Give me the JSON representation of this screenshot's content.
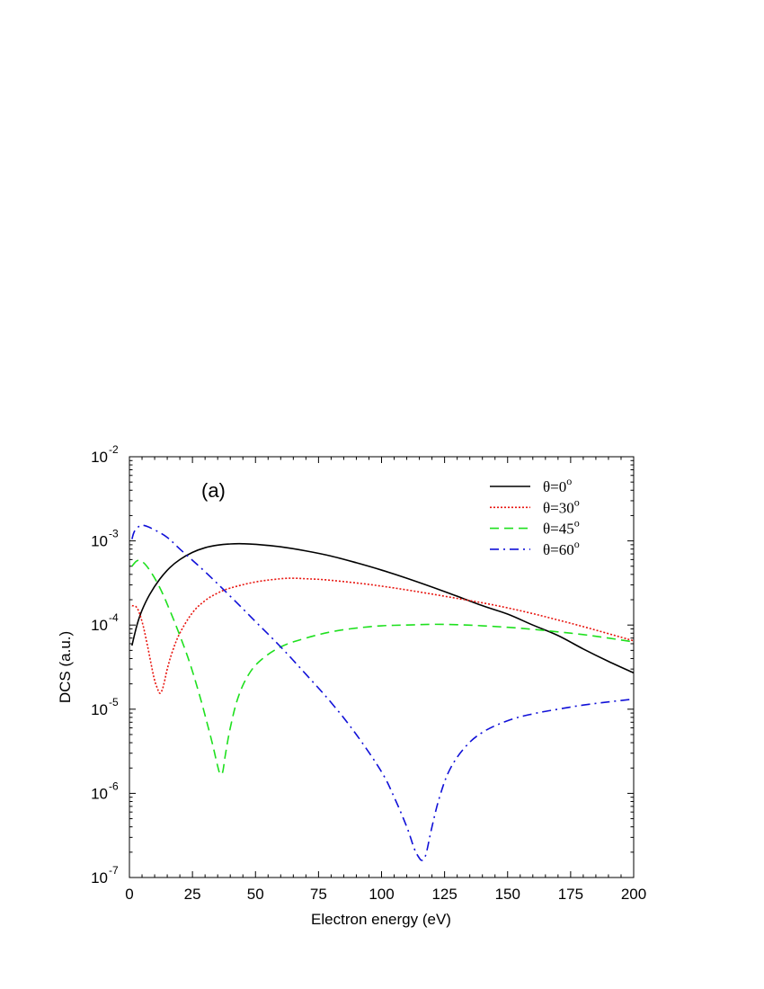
{
  "chart_data": {
    "type": "line",
    "panel_label": "(a)",
    "xlabel": "Electron energy (eV)",
    "ylabel": "DCS (a.u.)",
    "xlim": [
      0,
      200
    ],
    "ylim_log10": [
      -7,
      -2
    ],
    "y_scale": "log",
    "grid": false,
    "legend_position": "top-right",
    "x_ticks": [
      0,
      25,
      50,
      75,
      100,
      125,
      150,
      175,
      200
    ],
    "x_tick_labels": [
      "0",
      "25",
      "50",
      "75",
      "100",
      "125",
      "150",
      "175",
      "200"
    ],
    "y_tick_exponents": [
      -7,
      -6,
      -5,
      -4,
      -3,
      -2
    ],
    "y_tick_labels": [
      {
        "base": "10",
        "exp": "-7"
      },
      {
        "base": "10",
        "exp": "-6"
      },
      {
        "base": "10",
        "exp": "-5"
      },
      {
        "base": "10",
        "exp": "-4"
      },
      {
        "base": "10",
        "exp": "-3"
      },
      {
        "base": "10",
        "exp": "-2"
      }
    ],
    "series": [
      {
        "name": "θ=0",
        "name_sup": "o",
        "color": "#000000",
        "dash": "solid",
        "x": [
          1,
          3,
          5,
          8,
          12,
          16,
          20,
          25,
          30,
          35,
          40,
          45,
          50,
          60,
          70,
          80,
          90,
          100,
          110,
          125,
          140,
          150,
          160,
          170,
          180,
          190,
          200
        ],
        "y": [
          5.7e-05,
          0.0001,
          0.00015,
          0.00023,
          0.00035,
          0.00048,
          0.0006,
          0.00073,
          0.00083,
          0.00089,
          0.00092,
          0.000925,
          0.00091,
          0.00085,
          0.00076,
          0.00066,
          0.00055,
          0.00045,
          0.00036,
          0.00025,
          0.00017,
          0.000135,
          0.0001,
          7.5e-05,
          5.2e-05,
          3.7e-05,
          2.7e-05
        ]
      },
      {
        "name": "θ=30",
        "name_sup": "o",
        "color": "#e8150f",
        "dash": "dotted",
        "x": [
          1,
          3,
          5,
          7,
          9,
          10,
          11,
          12,
          13,
          14,
          15,
          17,
          20,
          25,
          30,
          35,
          40,
          50,
          60,
          65,
          70,
          80,
          100,
          125,
          150,
          175,
          200
        ],
        "y": [
          0.00017,
          0.00016,
          0.00011,
          6e-05,
          3e-05,
          2.2e-05,
          1.8e-05,
          1.55e-05,
          1.7e-05,
          2.2e-05,
          3e-05,
          4.8e-05,
          8e-05,
          0.00014,
          0.000195,
          0.00024,
          0.000275,
          0.000325,
          0.000355,
          0.00036,
          0.000355,
          0.00034,
          0.00029,
          0.00022,
          0.00016,
          0.000105,
          6.5e-05
        ]
      },
      {
        "name": "θ=45",
        "name_sup": "o",
        "color": "#1ee01e",
        "dash": "dashed",
        "x": [
          1,
          3,
          5,
          8,
          12,
          16,
          20,
          24,
          28,
          31,
          33,
          35,
          36,
          37,
          38,
          40,
          43,
          47,
          52,
          60,
          70,
          80,
          90,
          100,
          110,
          120,
          130,
          140,
          150,
          160,
          170,
          180,
          190,
          200
        ],
        "y": [
          0.0005,
          0.00058,
          0.00057,
          0.00045,
          0.00028,
          0.00015,
          7.5e-05,
          3.5e-05,
          1.4e-05,
          6.5e-06,
          3.8e-06,
          2.1e-06,
          1.7e-06,
          1.8e-06,
          2.8e-06,
          6e-06,
          1.35e-05,
          2.5e-05,
          3.8e-05,
          5.5e-05,
          7e-05,
          8.3e-05,
          9.2e-05,
          9.8e-05,
          0.0001,
          0.000102,
          0.000101,
          9.8e-05,
          9.4e-05,
          8.9e-05,
          8.3e-05,
          7.7e-05,
          7e-05,
          6.3e-05
        ]
      },
      {
        "name": "θ=60",
        "name_sup": "o",
        "color": "#1010d8",
        "dash": "dashdot",
        "x": [
          1,
          2,
          4,
          6,
          10,
          15,
          20,
          30,
          40,
          50,
          60,
          70,
          80,
          90,
          100,
          105,
          110,
          113,
          115,
          116,
          117,
          118,
          120,
          123,
          127,
          133,
          140,
          150,
          160,
          170,
          180,
          190,
          200
        ],
        "y": [
          0.00105,
          0.0013,
          0.0015,
          0.00152,
          0.00135,
          0.0011,
          0.0008,
          0.00043,
          0.00022,
          0.00011,
          5.5e-05,
          2.6e-05,
          1.2e-05,
          5e-06,
          1.8e-06,
          9e-07,
          4e-07,
          2.2e-07,
          1.7e-07,
          1.6e-07,
          1.7e-07,
          2.1e-07,
          4e-07,
          9e-07,
          1.9e-06,
          3.5e-06,
          5.3e-06,
          7.3e-06,
          8.8e-06,
          1e-05,
          1.12e-05,
          1.22e-05,
          1.32e-05
        ]
      }
    ]
  }
}
